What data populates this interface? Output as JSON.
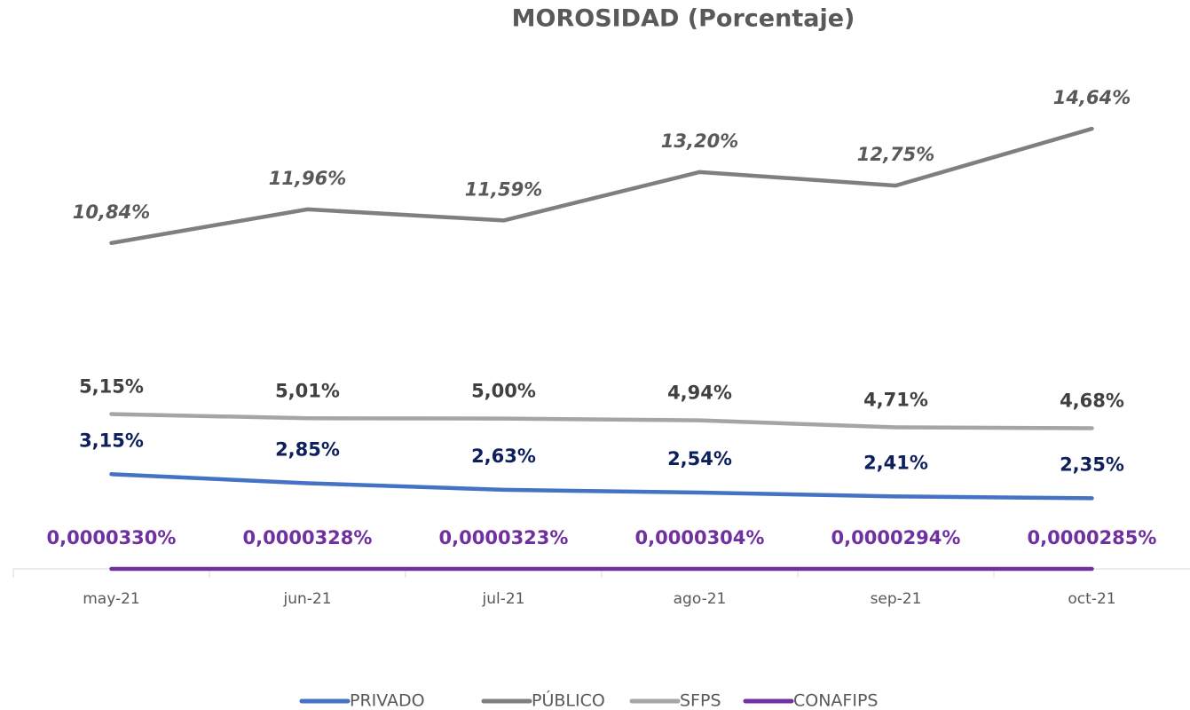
{
  "chart_data": {
    "type": "line",
    "title": "MOROSIDAD (Porcentaje)",
    "categories": [
      "may-21",
      "jun-21",
      "jul-21",
      "ago-21",
      "sep-21",
      "oct-21"
    ],
    "ylim": [
      0,
      16
    ],
    "series": [
      {
        "name": "PRIVADO",
        "color": "#4472c4",
        "values": [
          3.15,
          2.85,
          2.63,
          2.54,
          2.41,
          2.35
        ],
        "value_labels": [
          "3,15%",
          "2,85%",
          "2,63%",
          "2,54%",
          "2,41%",
          "2,35%"
        ]
      },
      {
        "name": "PÚBLICO",
        "color": "#7f7f7f",
        "values": [
          10.84,
          11.96,
          11.59,
          13.2,
          12.75,
          14.64
        ],
        "value_labels": [
          "10,84%",
          "11,96%",
          "11,59%",
          "13,20%",
          "12,75%",
          "14,64%"
        ]
      },
      {
        "name": "SFPS",
        "color": "#a5a5a5",
        "values": [
          5.15,
          5.01,
          5.0,
          4.94,
          4.71,
          4.68
        ],
        "value_labels": [
          "5,15%",
          "5,01%",
          "5,00%",
          "4,94%",
          "4,71%",
          "4,68%"
        ]
      },
      {
        "name": "CONAFIPS",
        "color": "#7030a0",
        "values": [
          3.3e-05,
          3.28e-05,
          3.23e-05,
          3.04e-05,
          2.94e-05,
          2.85e-05
        ],
        "value_labels": [
          "0,0000330%",
          "0,0000328%",
          "0,0000323%",
          "0,0000304%",
          "0,0000294%",
          "0,0000285%"
        ]
      }
    ]
  }
}
